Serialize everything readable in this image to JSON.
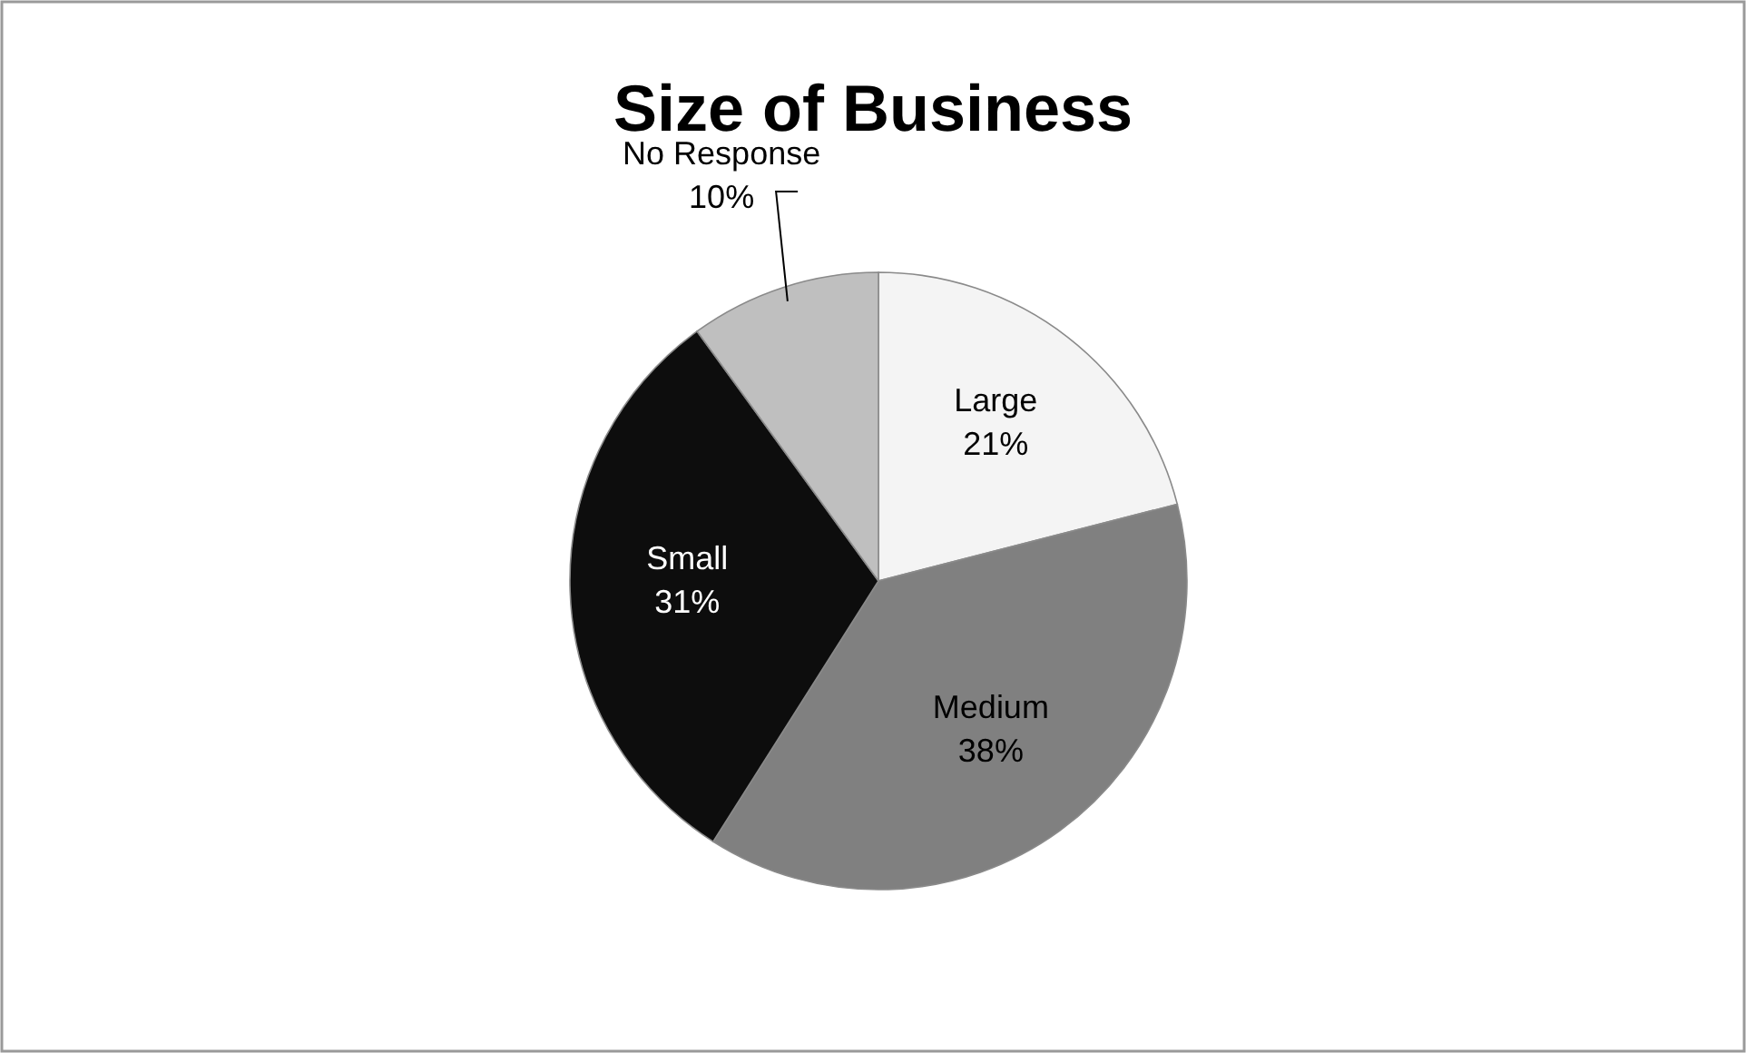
{
  "chart_data": {
    "type": "pie",
    "title": "Size of Business",
    "categories": [
      "Large",
      "Medium",
      "Small",
      "No Response"
    ],
    "values": [
      21,
      38,
      31,
      10
    ],
    "colors": [
      "#f4f4f4",
      "#808080",
      "#0d0d0d",
      "#bfbfbf"
    ],
    "value_labels": [
      "21%",
      "38%",
      "31%",
      "10%"
    ],
    "legend": false
  }
}
